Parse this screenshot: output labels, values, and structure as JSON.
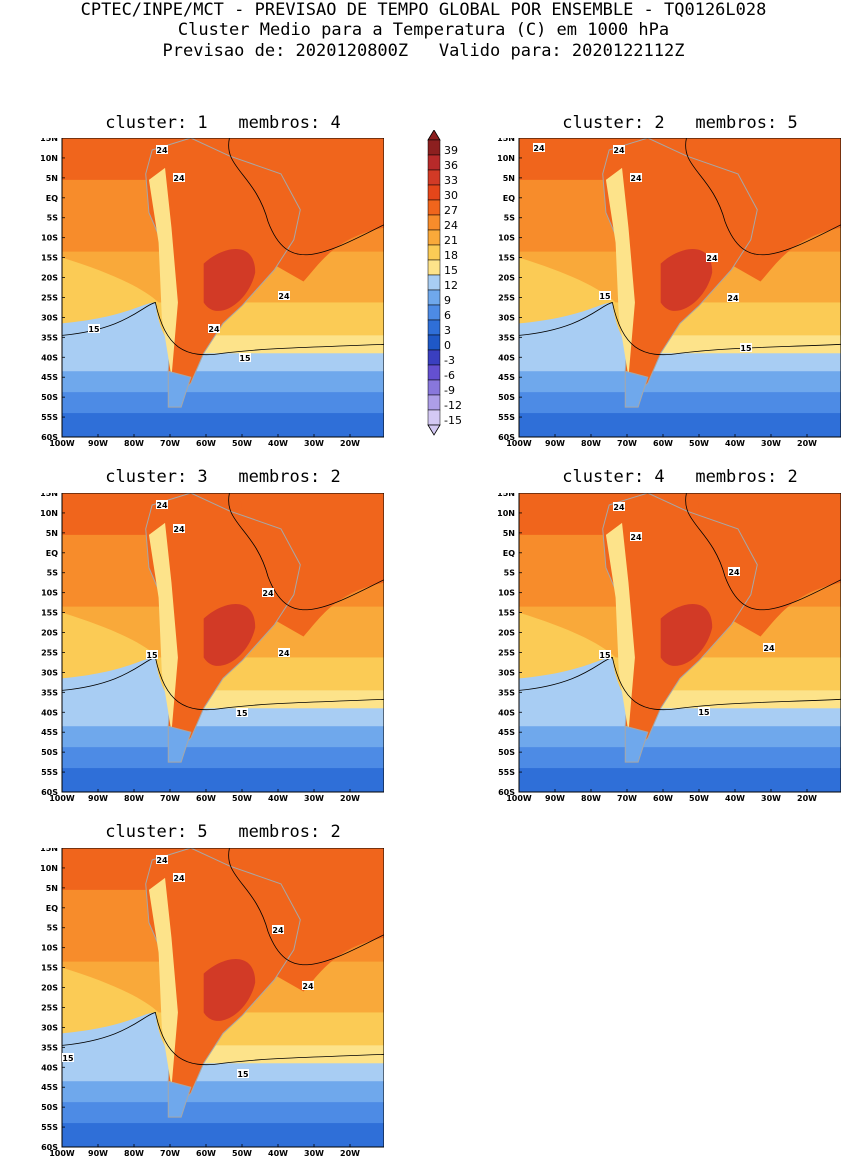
{
  "header": {
    "line1": "CPTEC/INPE/MCT - PREVISAO DE TEMPO GLOBAL POR ENSEMBLE - TQ0126L028",
    "line2": "Cluster Medio para a Temperatura (C) em 1000 hPa",
    "line3": "Previsao de: 2020120800Z   Valido para: 2020122112Z"
  },
  "axes": {
    "lat_labels": [
      "15N",
      "10N",
      "5N",
      "EQ",
      "5S",
      "10S",
      "15S",
      "20S",
      "25S",
      "30S",
      "35S",
      "40S",
      "45S",
      "50S",
      "55S",
      "60S"
    ],
    "lon_labels": [
      "100W",
      "90W",
      "80W",
      "70W",
      "60W",
      "50W",
      "40W",
      "30W",
      "20W"
    ]
  },
  "colorbar": {
    "labels": [
      "39",
      "36",
      "33",
      "30",
      "27",
      "24",
      "21",
      "18",
      "15",
      "12",
      "9",
      "6",
      "3",
      "0",
      "-3",
      "-6",
      "-9",
      "-12",
      "-15"
    ],
    "colors": [
      "#8c1f1f",
      "#b72a2a",
      "#d23a26",
      "#e5461a",
      "#f0651c",
      "#f78c2b",
      "#f9a93a",
      "#fbcb55",
      "#fde38a",
      "#a8cdf3",
      "#6fa8ec",
      "#4d8be5",
      "#2f6fd8",
      "#1f58c6",
      "#3a3fc0",
      "#6450d0",
      "#8877dc",
      "#ad9ee8",
      "#d4c9f4"
    ]
  },
  "panels": [
    {
      "title": "cluster: 1   membros: 4",
      "contour_labels": [
        "24",
        "24",
        "24",
        "24",
        "15",
        "15"
      ]
    },
    {
      "title": "cluster: 2   membros: 5",
      "contour_labels": [
        "24",
        "24",
        "24",
        "24",
        "24",
        "15",
        "15"
      ]
    },
    {
      "title": "cluster: 3   membros: 2",
      "contour_labels": [
        "24",
        "24",
        "24",
        "24",
        "15",
        "15"
      ]
    },
    {
      "title": "cluster: 4   membros: 2",
      "contour_labels": [
        "24",
        "24",
        "24",
        "24",
        "15",
        "15"
      ]
    },
    {
      "title": "cluster: 5   membros: 2",
      "contour_labels": [
        "24",
        "24",
        "24",
        "24",
        "15",
        "15"
      ]
    }
  ]
}
